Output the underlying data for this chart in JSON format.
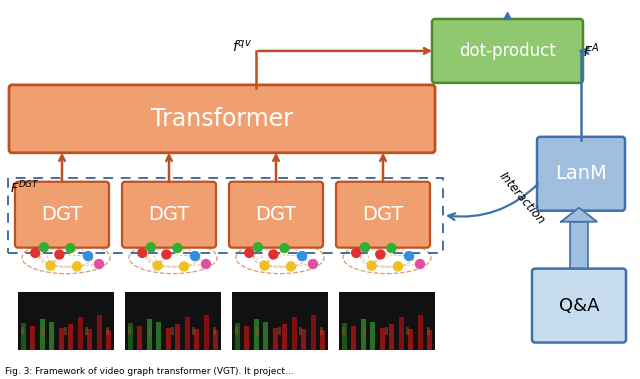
{
  "fig_width": 6.4,
  "fig_height": 3.79,
  "bg_color": "#ffffff",
  "orange_fill": "#F0A070",
  "orange_edge": "#C05020",
  "green_fill": "#90C870",
  "green_edge": "#4A8A28",
  "blue_fill": "#A0BEDD",
  "blue_edge": "#4070AA",
  "blue_light_fill": "#C8DCF0",
  "arrow_orange": "#C05020",
  "arrow_blue": "#4070AA",
  "transformer_label": "Transformer",
  "dgt_label": "DGT",
  "dot_product_label": "dot-product",
  "lanm_label": "LanM",
  "qa_label": "Q&A",
  "caption": "Fig. 3: Framework of video graph transformer (VGT). It project..."
}
